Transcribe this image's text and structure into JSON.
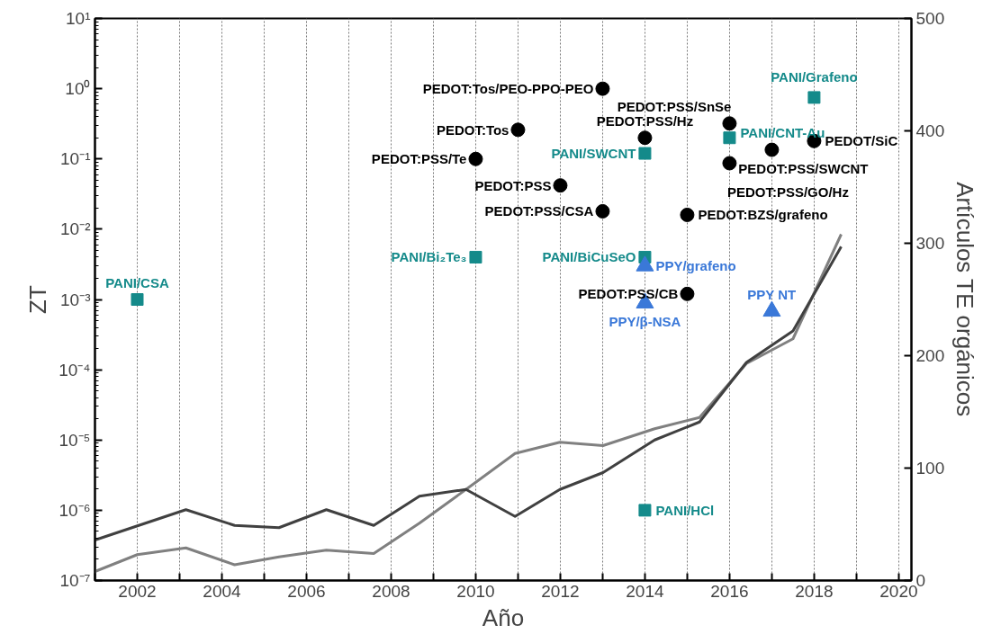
{
  "chart_data": {
    "type": "scatter",
    "xlabel": "Año",
    "ylabel": "ZT",
    "y2label": "Artículos TE orgánicos",
    "xlim": [
      2001,
      2020.3
    ],
    "xticks": [
      {
        "value": 2001,
        "label": null
      },
      2002,
      {
        "value": 2003,
        "label": null
      },
      2004,
      {
        "value": 2005,
        "label": null
      },
      2006,
      {
        "value": 2007,
        "label": null
      },
      2008,
      {
        "value": 2009,
        "label": null
      },
      2010,
      {
        "value": 2011,
        "label": null
      },
      2012,
      {
        "value": 2013,
        "label": null
      },
      2014,
      {
        "value": 2015,
        "label": null
      },
      2016,
      {
        "value": 2017,
        "label": null
      },
      2018,
      {
        "value": 2019,
        "label": null
      },
      2020
    ],
    "ylim": [
      1e-07,
      10
    ],
    "log": "y",
    "yticks": [
      {
        "value": 1e-07,
        "label": "10⁻⁷"
      },
      {
        "value": 1e-06,
        "label": "10⁻⁶"
      },
      {
        "value": 1e-05,
        "label": "10⁻⁵"
      },
      {
        "value": 0.0001,
        "label": "10⁻⁴"
      },
      {
        "value": 0.001,
        "label": "10⁻³"
      },
      {
        "value": 0.01,
        "label": "10⁻²"
      },
      {
        "value": 0.1,
        "label": "10⁻¹"
      },
      {
        "value": 1,
        "label": "10⁰"
      },
      {
        "value": 10,
        "label": "10¹"
      }
    ],
    "y2lim": [
      0,
      500
    ],
    "y2ticks": [
      0,
      100,
      200,
      300,
      400,
      500
    ],
    "grid": "x",
    "series": [
      {
        "type": "line",
        "axis": "y2",
        "color": "#808080",
        "x": [
          2001.0,
          2002.0,
          2003.15,
          2004.3,
          2005.35,
          2006.47,
          2007.59,
          2008.67,
          2009.77,
          2010.93,
          2011.99,
          2013.01,
          2014.23,
          2015.29,
          2016.4,
          2017.5,
          2018.64
        ],
        "values": [
          8,
          23,
          29,
          14,
          21,
          27,
          24,
          51,
          81,
          113,
          123,
          120,
          135,
          145,
          193,
          215,
          308
        ]
      },
      {
        "type": "line",
        "axis": "y2",
        "color": "#404040",
        "x": [
          2001.0,
          2003.15,
          2004.3,
          2005.35,
          2006.47,
          2007.59,
          2008.67,
          2009.77,
          2010.93,
          2011.99,
          2013.01,
          2014.23,
          2015.29,
          2016.4,
          2017.5,
          2018.64
        ],
        "values": [
          36,
          63,
          49,
          47,
          63,
          49,
          75,
          81,
          57,
          81,
          96,
          125,
          141,
          194,
          222,
          297
        ]
      },
      {
        "marker": "square",
        "color": "#148a8a",
        "x": [
          2002,
          2010,
          2014,
          2014,
          2014,
          2016,
          2018
        ],
        "values": [
          0.001,
          0.004,
          0.12,
          0.004,
          1e-06,
          0.2,
          0.75
        ]
      },
      {
        "marker": "circle",
        "color": "#000000",
        "x": [
          2013,
          2011,
          2010,
          2012,
          2013,
          2014,
          2016,
          2017,
          2018,
          2016,
          2015,
          2015
        ],
        "values": [
          1,
          0.26,
          0.1,
          0.042,
          0.018,
          0.2,
          0.32,
          0.135,
          0.18,
          0.087,
          0.016,
          0.0012
        ]
      },
      {
        "marker": "triangle",
        "color": "#3a78d8",
        "x": [
          2014,
          2014,
          2017
        ],
        "values": [
          0.003,
          0.00089,
          0.00068
        ]
      }
    ],
    "annotations": [
      {
        "text": "PANI/CSA",
        "x": 2002,
        "y": 0.001
      },
      {
        "text": "PANI/Bi₂Te₃",
        "x": 2010,
        "y": 0.004
      },
      {
        "text": "PANI/SWCNT",
        "x": 2014,
        "y": 0.12
      },
      {
        "text": "PANI/BiCuSeO",
        "x": 2014,
        "y": 0.004
      },
      {
        "text": "PANI/HCl",
        "x": 2014,
        "y": 1e-06
      },
      {
        "text": "PANI/CNT-Au",
        "x": 2016,
        "y": 0.2
      },
      {
        "text": "PANI/Grafeno",
        "x": 2018,
        "y": 0.75
      },
      {
        "text": "PEDOT:Tos/PEO-PPO-PEO",
        "x": 2013,
        "y": 1
      },
      {
        "text": "PEDOT:Tos",
        "x": 2011,
        "y": 0.26
      },
      {
        "text": "PEDOT:PSS/Te",
        "x": 2010,
        "y": 0.1
      },
      {
        "text": "PEDOT:PSS",
        "x": 2012,
        "y": 0.042
      },
      {
        "text": "PEDOT:PSS/CSA",
        "x": 2013,
        "y": 0.018
      },
      {
        "text": "PEDOT:PSS/Hz",
        "x": 2014,
        "y": 0.2
      },
      {
        "text": "PEDOT:PSS/SnSe",
        "x": 2016,
        "y": 0.32
      },
      {
        "text": "PEDOT:PSS/SWCNT",
        "x": 2017,
        "y": 0.135
      },
      {
        "text": "PEDOT/SiC",
        "x": 2018,
        "y": 0.18
      },
      {
        "text": "PEDOT:PSS/GO/Hz",
        "x": 2016,
        "y": 0.087
      },
      {
        "text": "PEDOT:BZS/grafeno",
        "x": 2015,
        "y": 0.016
      },
      {
        "text": "PEDOT:PSS/CB",
        "x": 2015,
        "y": 0.0012
      },
      {
        "text": "PPY/grafeno",
        "x": 2014,
        "y": 0.003
      },
      {
        "text": "PPY/β-NSA",
        "x": 2014,
        "y": 0.00089
      },
      {
        "text": "PPY NT",
        "x": 2017,
        "y": 0.00068
      }
    ]
  }
}
